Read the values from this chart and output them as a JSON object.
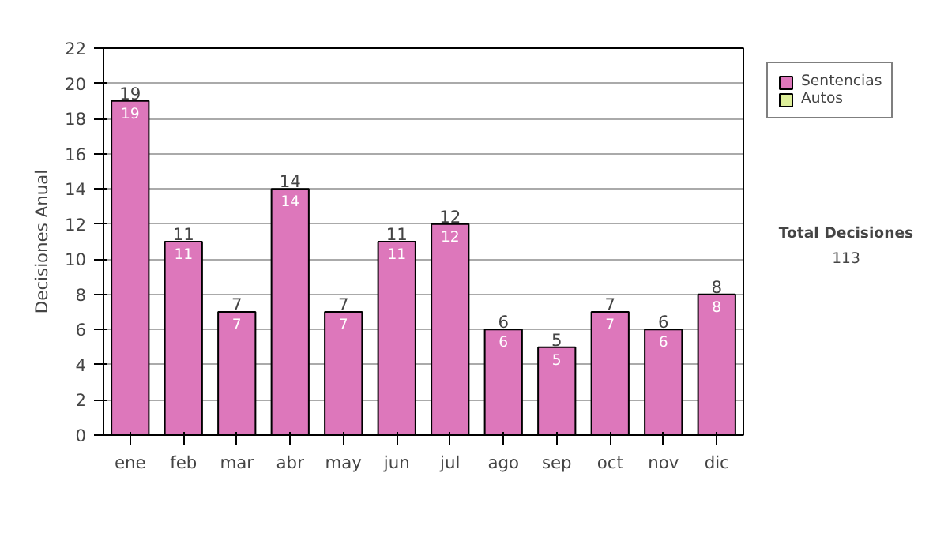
{
  "chart_data": {
    "type": "bar",
    "stacked": true,
    "ylabel": "Decisiones Anual",
    "categories": [
      "ene",
      "feb",
      "mar",
      "abr",
      "may",
      "jun",
      "jul",
      "ago",
      "sep",
      "oct",
      "nov",
      "dic"
    ],
    "series": [
      {
        "name": "Sentencias",
        "color": "#dd77bb",
        "values": [
          19,
          11,
          7,
          14,
          7,
          11,
          12,
          6,
          5,
          7,
          6,
          8
        ],
        "value_labels": [
          "19",
          "11",
          "7",
          "14",
          "7",
          "11",
          "12",
          "6",
          "5",
          "7",
          "6",
          "8"
        ]
      },
      {
        "name": "Autos",
        "color": "#ddee99",
        "values": [
          0,
          0,
          0,
          0,
          0,
          0,
          0,
          0,
          0,
          0,
          0,
          0
        ]
      }
    ],
    "totals": [
      "19",
      "11",
      "7",
      "14",
      "7",
      "11",
      "12",
      "6",
      "5",
      "7",
      "6",
      "8"
    ],
    "ylim": [
      0,
      22
    ],
    "yticks": [
      0,
      2,
      4,
      6,
      8,
      10,
      12,
      14,
      16,
      18,
      20,
      22
    ],
    "grid": "y",
    "legend": "right",
    "annotations": [
      "Total Decisiones",
      "113"
    ]
  }
}
